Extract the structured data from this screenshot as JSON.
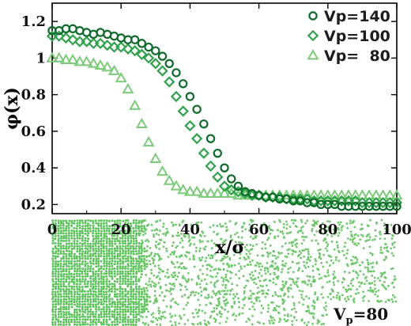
{
  "chart_data": {
    "type": "scatter",
    "xlabel": "x/σ",
    "ylabel": "φ(x)",
    "xlim": [
      0,
      100
    ],
    "ylim": [
      0.15,
      1.3
    ],
    "x_ticks": [
      "0",
      "20",
      "40",
      "60",
      "80",
      "100"
    ],
    "y_ticks": [
      "0.2",
      "0.4",
      "0.6",
      "0.8",
      "1",
      "1.2"
    ],
    "grid": false,
    "legend_position": "top-right",
    "series": [
      {
        "name": "Vp=140",
        "marker": "circle",
        "color": "#0f6b2a",
        "x": [
          0,
          2,
          4,
          6,
          8,
          10,
          12,
          14,
          16,
          18,
          20,
          22,
          24,
          26,
          28,
          30,
          32,
          34,
          36,
          38,
          40,
          42,
          44,
          46,
          48,
          50,
          52,
          54,
          56,
          58,
          60,
          62,
          64,
          66,
          68,
          70,
          72,
          74,
          76,
          78,
          80,
          82,
          84,
          86,
          88,
          90,
          92,
          94,
          96,
          98,
          100
        ],
        "y": [
          1.15,
          1.15,
          1.16,
          1.16,
          1.15,
          1.14,
          1.13,
          1.14,
          1.13,
          1.12,
          1.11,
          1.1,
          1.1,
          1.08,
          1.06,
          1.04,
          1.01,
          0.97,
          0.92,
          0.86,
          0.79,
          0.72,
          0.64,
          0.56,
          0.48,
          0.4,
          0.34,
          0.3,
          0.27,
          0.26,
          0.25,
          0.24,
          0.24,
          0.23,
          0.23,
          0.22,
          0.22,
          0.21,
          0.21,
          0.2,
          0.2,
          0.2,
          0.19,
          0.19,
          0.19,
          0.19,
          0.19,
          0.19,
          0.19,
          0.19,
          0.19
        ]
      },
      {
        "name": "Vp=100",
        "marker": "diamond",
        "color": "#31a24c",
        "x": [
          0,
          2,
          4,
          6,
          8,
          10,
          12,
          14,
          16,
          18,
          20,
          22,
          24,
          26,
          28,
          30,
          32,
          34,
          36,
          38,
          40,
          42,
          44,
          46,
          48,
          50,
          52,
          54,
          56,
          58,
          60,
          62,
          64,
          66,
          68,
          70,
          72,
          74,
          76,
          78,
          80,
          82,
          84,
          86,
          88,
          90,
          92,
          94,
          96,
          98,
          100
        ],
        "y": [
          1.12,
          1.12,
          1.11,
          1.1,
          1.09,
          1.09,
          1.08,
          1.08,
          1.07,
          1.06,
          1.06,
          1.05,
          1.04,
          1.02,
          1.0,
          0.97,
          0.93,
          0.87,
          0.79,
          0.71,
          0.63,
          0.56,
          0.48,
          0.41,
          0.35,
          0.3,
          0.28,
          0.27,
          0.26,
          0.25,
          0.25,
          0.24,
          0.24,
          0.24,
          0.23,
          0.23,
          0.23,
          0.23,
          0.22,
          0.22,
          0.22,
          0.22,
          0.22,
          0.22,
          0.22,
          0.21,
          0.21,
          0.21,
          0.21,
          0.21,
          0.21
        ]
      },
      {
        "name": "Vp=  80",
        "marker": "triangle",
        "color": "#7ccb79",
        "x": [
          0,
          2,
          4,
          6,
          8,
          10,
          12,
          14,
          16,
          18,
          20,
          22,
          24,
          26,
          28,
          30,
          32,
          34,
          36,
          38,
          40,
          42,
          44,
          46,
          48,
          50,
          52,
          54,
          56,
          58,
          60,
          62,
          64,
          66,
          68,
          70,
          72,
          74,
          76,
          78,
          80,
          82,
          84,
          86,
          88,
          90,
          92,
          94,
          96,
          98,
          100
        ],
        "y": [
          1.0,
          1.0,
          0.99,
          0.99,
          0.98,
          0.98,
          0.97,
          0.96,
          0.95,
          0.93,
          0.89,
          0.83,
          0.74,
          0.64,
          0.54,
          0.45,
          0.38,
          0.33,
          0.3,
          0.28,
          0.27,
          0.27,
          0.26,
          0.26,
          0.26,
          0.26,
          0.26,
          0.25,
          0.25,
          0.25,
          0.25,
          0.25,
          0.25,
          0.25,
          0.25,
          0.25,
          0.25,
          0.25,
          0.25,
          0.25,
          0.25,
          0.25,
          0.25,
          0.25,
          0.25,
          0.25,
          0.25,
          0.25,
          0.25,
          0.25,
          0.25
        ]
      }
    ]
  },
  "snapshot": {
    "label_main": "V",
    "label_sub": "p",
    "label_tail": "=80",
    "dense_color": "#5cc25a",
    "sparse_color": "#6fc96c"
  }
}
